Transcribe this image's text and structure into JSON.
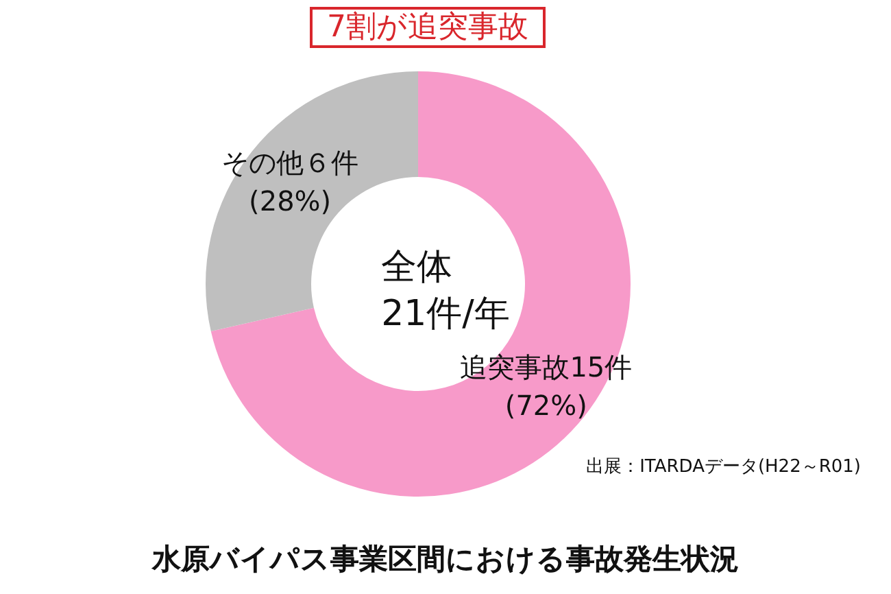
{
  "chart_data": {
    "type": "donut",
    "title": "7割が追突事故",
    "subtitle": "水原バイパス事業区間における事故発生状況",
    "categories": [
      "追突事故15件\n(72%)",
      "その他６件\n(28%)"
    ],
    "values": [
      15,
      6
    ],
    "colors": [
      "#f79ac9",
      "#bfbfbf"
    ],
    "annotations": [
      "全体\n21件/年",
      "出展：ITARDAデータ(H22～R01)"
    ],
    "legend": false
  }
}
